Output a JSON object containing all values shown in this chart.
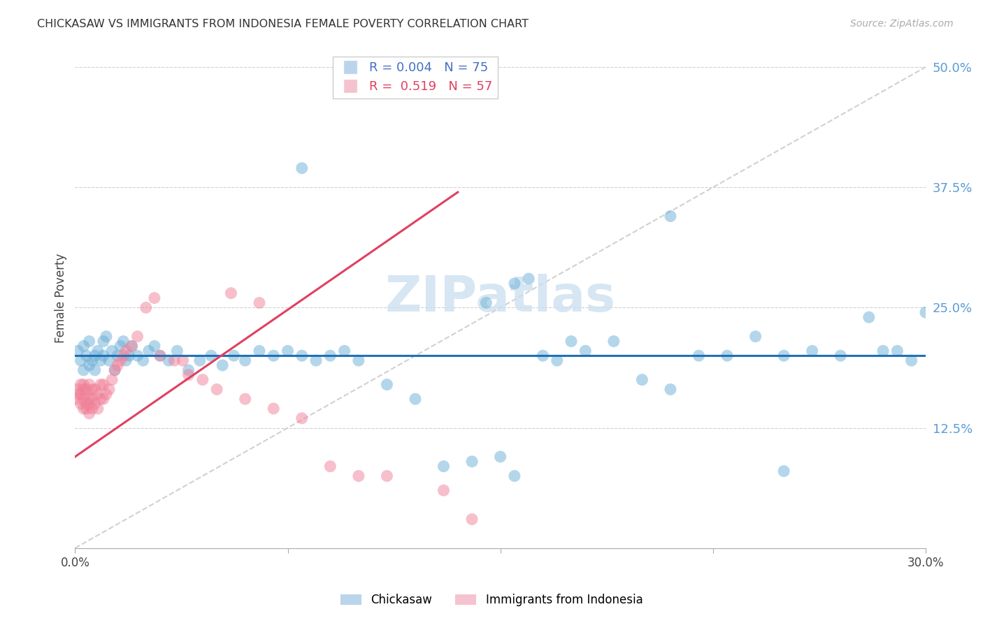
{
  "title": "CHICKASAW VS IMMIGRANTS FROM INDONESIA FEMALE POVERTY CORRELATION CHART",
  "source": "Source: ZipAtlas.com",
  "ylabel": "Female Poverty",
  "xlim": [
    0.0,
    0.3
  ],
  "ylim": [
    0.0,
    0.52
  ],
  "ytick_right_vals": [
    0.125,
    0.25,
    0.375,
    0.5
  ],
  "ytick_right_labels": [
    "12.5%",
    "25.0%",
    "37.5%",
    "50.0%"
  ],
  "R_chickasaw": 0.004,
  "N_chickasaw": 75,
  "R_indonesia": 0.519,
  "N_indonesia": 57,
  "blue_color": "#6baed6",
  "pink_color": "#f08098",
  "blue_line_color": "#2171b5",
  "pink_line_color": "#e04060",
  "diag_color": "#cccccc",
  "watermark_color": "#cde0f0",
  "background_color": "#ffffff",
  "chickasaw_x": [
    0.001,
    0.002,
    0.003,
    0.003,
    0.004,
    0.005,
    0.005,
    0.006,
    0.007,
    0.007,
    0.008,
    0.009,
    0.01,
    0.01,
    0.011,
    0.012,
    0.013,
    0.014,
    0.015,
    0.016,
    0.017,
    0.018,
    0.019,
    0.02,
    0.022,
    0.024,
    0.026,
    0.028,
    0.03,
    0.033,
    0.036,
    0.04,
    0.044,
    0.048,
    0.052,
    0.056,
    0.06,
    0.065,
    0.07,
    0.075,
    0.08,
    0.085,
    0.09,
    0.095,
    0.1,
    0.11,
    0.12,
    0.13,
    0.14,
    0.15,
    0.155,
    0.16,
    0.165,
    0.17,
    0.175,
    0.18,
    0.19,
    0.2,
    0.21,
    0.22,
    0.23,
    0.24,
    0.25,
    0.26,
    0.27,
    0.28,
    0.285,
    0.29,
    0.295,
    0.3,
    0.145,
    0.08,
    0.155,
    0.21,
    0.25
  ],
  "chickasaw_y": [
    0.205,
    0.195,
    0.185,
    0.21,
    0.2,
    0.19,
    0.215,
    0.195,
    0.185,
    0.2,
    0.205,
    0.195,
    0.215,
    0.2,
    0.22,
    0.195,
    0.205,
    0.185,
    0.2,
    0.21,
    0.215,
    0.195,
    0.2,
    0.21,
    0.2,
    0.195,
    0.205,
    0.21,
    0.2,
    0.195,
    0.205,
    0.185,
    0.195,
    0.2,
    0.19,
    0.2,
    0.195,
    0.205,
    0.2,
    0.205,
    0.2,
    0.195,
    0.2,
    0.205,
    0.195,
    0.17,
    0.155,
    0.085,
    0.09,
    0.095,
    0.275,
    0.28,
    0.2,
    0.195,
    0.215,
    0.205,
    0.215,
    0.175,
    0.165,
    0.2,
    0.2,
    0.22,
    0.2,
    0.205,
    0.2,
    0.24,
    0.205,
    0.205,
    0.195,
    0.245,
    0.255,
    0.395,
    0.075,
    0.345,
    0.08
  ],
  "indonesia_x": [
    0.001,
    0.001,
    0.001,
    0.002,
    0.002,
    0.002,
    0.003,
    0.003,
    0.003,
    0.003,
    0.004,
    0.004,
    0.004,
    0.004,
    0.005,
    0.005,
    0.005,
    0.005,
    0.006,
    0.006,
    0.006,
    0.007,
    0.007,
    0.008,
    0.008,
    0.009,
    0.009,
    0.01,
    0.01,
    0.011,
    0.012,
    0.013,
    0.014,
    0.015,
    0.016,
    0.017,
    0.018,
    0.02,
    0.022,
    0.025,
    0.028,
    0.03,
    0.035,
    0.038,
    0.04,
    0.045,
    0.05,
    0.06,
    0.07,
    0.08,
    0.09,
    0.1,
    0.11,
    0.13,
    0.14,
    0.065,
    0.055
  ],
  "indonesia_y": [
    0.155,
    0.16,
    0.165,
    0.15,
    0.16,
    0.17,
    0.145,
    0.155,
    0.165,
    0.17,
    0.145,
    0.15,
    0.16,
    0.165,
    0.14,
    0.15,
    0.155,
    0.17,
    0.145,
    0.155,
    0.165,
    0.15,
    0.165,
    0.145,
    0.16,
    0.155,
    0.17,
    0.155,
    0.17,
    0.16,
    0.165,
    0.175,
    0.185,
    0.19,
    0.195,
    0.2,
    0.205,
    0.21,
    0.22,
    0.25,
    0.26,
    0.2,
    0.195,
    0.195,
    0.18,
    0.175,
    0.165,
    0.155,
    0.145,
    0.135,
    0.085,
    0.075,
    0.075,
    0.06,
    0.03,
    0.255,
    0.265
  ],
  "blue_hline_y": 0.2,
  "pink_line_x0": 0.0,
  "pink_line_x1": 0.135,
  "pink_line_y0": 0.095,
  "pink_line_y1": 0.37
}
